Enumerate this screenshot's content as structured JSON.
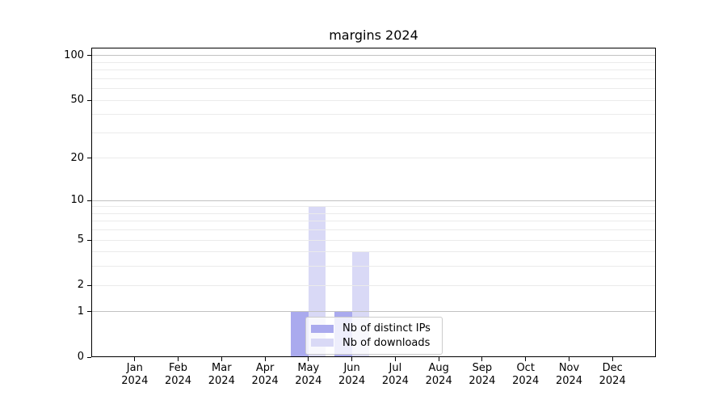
{
  "chart_data": {
    "type": "bar",
    "title": "margins 2024",
    "categories": [
      "Jan",
      "Feb",
      "Mar",
      "Apr",
      "May",
      "Jun",
      "Jul",
      "Aug",
      "Sep",
      "Oct",
      "Nov",
      "Dec"
    ],
    "x_year": "2024",
    "series": [
      {
        "name": "Nb of distinct IPs",
        "color": "#aaaaee",
        "values": [
          0,
          0,
          0,
          0,
          1,
          1,
          0,
          0,
          0,
          0,
          0,
          0
        ]
      },
      {
        "name": "Nb of downloads",
        "color": "#d9d9f6",
        "values": [
          0,
          0,
          0,
          0,
          9,
          4,
          0,
          0,
          0,
          0,
          0,
          0
        ]
      }
    ],
    "y_scale": "log10(1+v)",
    "y_ticks": [
      0,
      1,
      2,
      5,
      10,
      20,
      50,
      100
    ],
    "y_gridlines_major": [
      1,
      10,
      100
    ],
    "y_gridlines_minor": [
      2,
      3,
      4,
      5,
      6,
      7,
      8,
      9,
      20,
      30,
      40,
      50,
      60,
      70,
      80,
      90
    ],
    "ylim": [
      0,
      113
    ],
    "grid": true,
    "legend_position": "lower center"
  },
  "colors": {
    "background": "#ffffff",
    "bar_distinct_ips": "#aaaaee",
    "bar_downloads": "#d9d9f6",
    "grid_major": "#c2c2c2",
    "grid_minor": "#ebebeb",
    "axis": "#000000",
    "text": "#000000",
    "legend_border": "#cccccc"
  }
}
